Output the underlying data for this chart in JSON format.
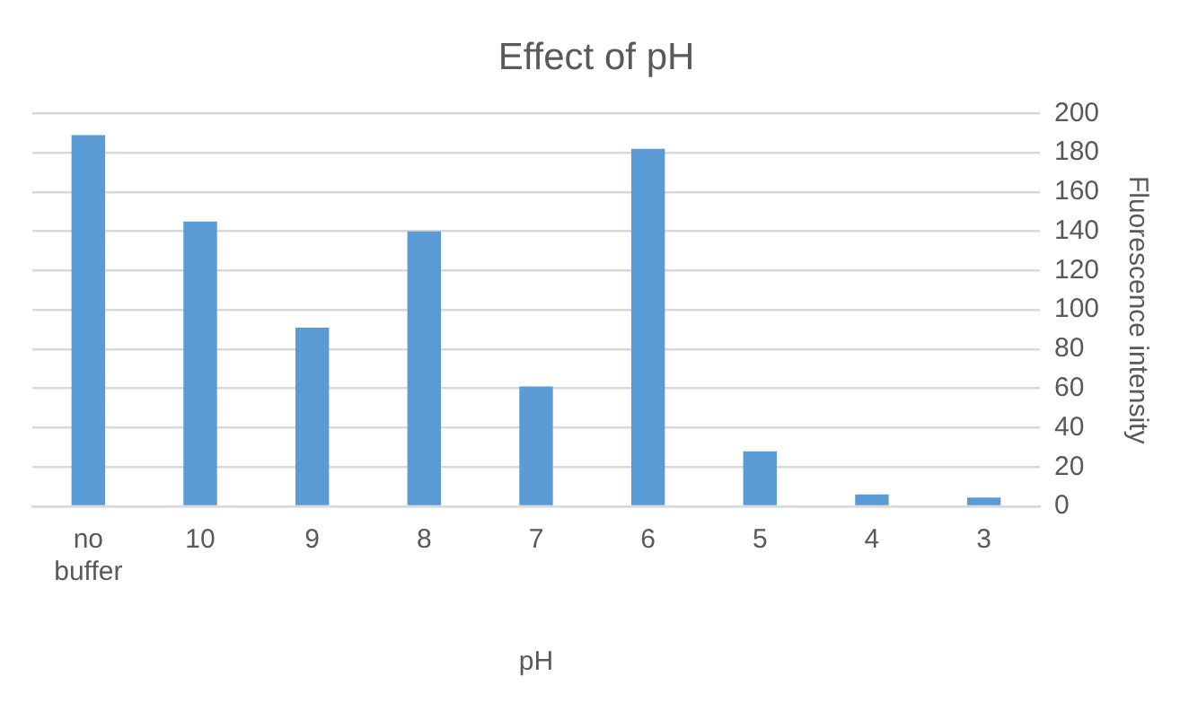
{
  "chart_data": {
    "type": "bar",
    "title": "Effect of pH",
    "xlabel": "pH",
    "ylabel": "Fluorescence intensity",
    "categories": [
      "no buffer",
      "10",
      "9",
      "8",
      "7",
      "6",
      "5",
      "4",
      "3"
    ],
    "values": [
      189,
      145,
      91,
      140,
      61,
      182,
      28,
      6,
      4.5
    ],
    "color": "#5b9bd5",
    "ylim": [
      0,
      200
    ],
    "yticks": [
      0,
      20,
      40,
      60,
      80,
      100,
      120,
      140,
      160,
      180,
      200
    ],
    "grid": "y",
    "legend": false
  }
}
